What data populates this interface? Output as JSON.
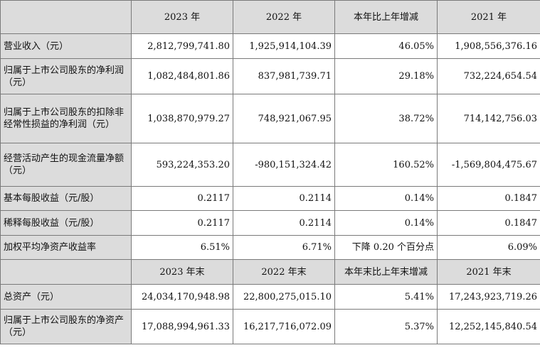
{
  "header1": [
    "2023 年",
    "2022 年",
    "本年比上年增减",
    "2021 年"
  ],
  "rows1": [
    {
      "label": "营业收入（元）",
      "values": [
        "2,812,799,741.80",
        "1,925,914,104.39",
        "46.05%",
        "1,908,556,376.16"
      ]
    },
    {
      "label": "归属于上市公司股东的净利润（元）",
      "values": [
        "1,082,484,801.86",
        "837,981,739.71",
        "29.18%",
        "732,224,654.54"
      ]
    },
    {
      "label": "归属于上市公司股东的扣除非经常性损益的净利润（元）",
      "values": [
        "1,038,870,979.27",
        "748,921,067.95",
        "38.72%",
        "714,142,756.03"
      ]
    },
    {
      "label": "经营活动产生的现金流量净额（元）",
      "values": [
        "593,224,353.20",
        "-980,151,324.42",
        "160.52%",
        "-1,569,804,475.67"
      ]
    },
    {
      "label": "基本每股收益（元/股）",
      "values": [
        "0.2117",
        "0.2114",
        "0.14%",
        "0.1847"
      ]
    },
    {
      "label": "稀释每股收益（元/股）",
      "values": [
        "0.2117",
        "0.2114",
        "0.14%",
        "0.1847"
      ]
    },
    {
      "label": "加权平均净资产收益率",
      "values": [
        "6.51%",
        "6.71%",
        "下降 0.20 个百分点",
        "6.09%"
      ]
    }
  ],
  "header2": [
    "2023 年末",
    "2022 年末",
    "本年末比上年末增减",
    "2021 年末"
  ],
  "rows2": [
    {
      "label": "总资产（元）",
      "values": [
        "24,034,170,948.98",
        "22,800,275,015.10",
        "5.41%",
        "17,243,923,719.26"
      ]
    },
    {
      "label": "归属于上市公司股东的净资产（元）",
      "values": [
        "17,088,994,961.33",
        "16,217,716,072.09",
        "5.37%",
        "12,252,145,840.54"
      ]
    }
  ]
}
